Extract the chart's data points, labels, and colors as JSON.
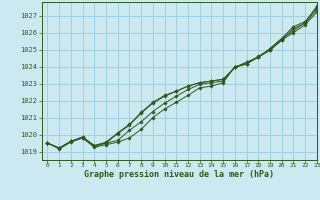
{
  "title": "Graphe pression niveau de la mer (hPa)",
  "bg_color": "#cce8f0",
  "grid_color": "#99ccdd",
  "line_color": "#2d5a1b",
  "xlim": [
    -0.5,
    23
  ],
  "ylim": [
    1018.5,
    1027.8
  ],
  "yticks": [
    1019,
    1020,
    1021,
    1022,
    1023,
    1024,
    1025,
    1026,
    1027
  ],
  "xticks": [
    0,
    1,
    2,
    3,
    4,
    5,
    6,
    7,
    8,
    9,
    10,
    11,
    12,
    13,
    14,
    15,
    16,
    17,
    18,
    19,
    20,
    21,
    22,
    23
  ],
  "series": [
    [
      1019.5,
      1019.15,
      1019.55,
      1019.8,
      1019.25,
      1019.4,
      1019.55,
      1019.8,
      1020.3,
      1021.0,
      1021.5,
      1021.9,
      1022.3,
      1022.75,
      1022.85,
      1023.05,
      1024.0,
      1024.15,
      1024.6,
      1025.0,
      1025.55,
      1026.0,
      1026.45,
      1027.2
    ],
    [
      1019.5,
      1019.2,
      1019.6,
      1019.85,
      1019.35,
      1019.5,
      1019.65,
      1020.25,
      1020.75,
      1021.35,
      1021.85,
      1022.25,
      1022.65,
      1022.95,
      1023.05,
      1023.15,
      1023.95,
      1024.15,
      1024.55,
      1024.95,
      1025.55,
      1026.25,
      1026.55,
      1027.35
    ],
    [
      1019.5,
      1019.2,
      1019.6,
      1019.85,
      1019.35,
      1019.55,
      1020.1,
      1020.6,
      1021.3,
      1021.9,
      1022.3,
      1022.55,
      1022.85,
      1023.05,
      1023.15,
      1023.25,
      1023.95,
      1024.25,
      1024.55,
      1025.05,
      1025.65,
      1026.35,
      1026.65,
      1027.45
    ],
    [
      1019.5,
      1019.2,
      1019.6,
      1019.8,
      1019.3,
      1019.5,
      1020.05,
      1020.55,
      1021.25,
      1021.85,
      1022.25,
      1022.55,
      1022.85,
      1023.05,
      1023.15,
      1023.25,
      1023.95,
      1024.25,
      1024.55,
      1025.05,
      1025.65,
      1026.1,
      1026.6,
      1027.55
    ]
  ]
}
